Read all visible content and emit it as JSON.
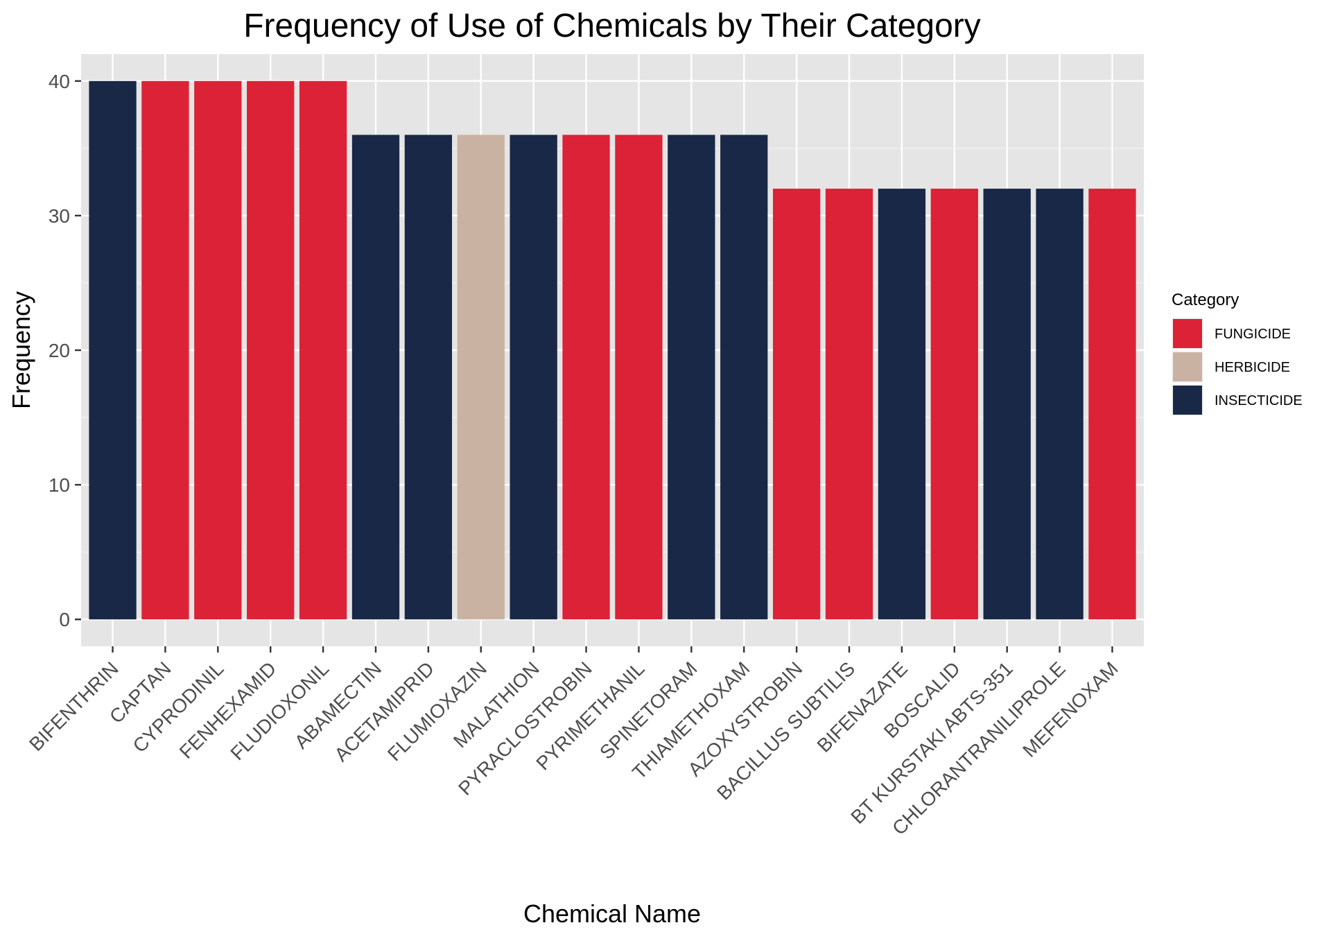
{
  "chart_data": {
    "type": "bar",
    "title": "Frequency of Use of Chemicals by Their Category",
    "xlabel": "Chemical Name",
    "ylabel": "Frequency",
    "ylim": [
      -2,
      42
    ],
    "yticks": [
      0,
      10,
      20,
      30,
      40
    ],
    "ytick_labels": [
      "0",
      "10",
      "20",
      "30",
      "40"
    ],
    "grid": true,
    "legend": {
      "title": "Category",
      "position": "right",
      "entries": [
        {
          "label": "FUNGICIDE",
          "color": "#DC2237"
        },
        {
          "label": "HERBICIDE",
          "color": "#CAB2A2"
        },
        {
          "label": "INSECTICIDE",
          "color": "#1A2847"
        }
      ]
    },
    "categories": [
      "BIFENTHRIN",
      "CAPTAN",
      "CYPRODINIL",
      "FENHEXAMID",
      "FLUDIOXONIL",
      "ABAMECTIN",
      "ACETAMIPRID",
      "FLUMIOXAZIN",
      "MALATHION",
      "PYRACLOSTROBIN",
      "PYRIMETHANIL",
      "SPINETORAM",
      "THIAMETHOXAM",
      "AZOXYSTROBIN",
      "BACILLUS SUBTILIS",
      "BIFENAZATE",
      "BOSCALID",
      "BT KURSTAKI ABTS-351",
      "CHLORANTRANILIPROLE",
      "MEFENOXAM"
    ],
    "values": [
      40,
      40,
      40,
      40,
      40,
      36,
      36,
      36,
      36,
      36,
      36,
      36,
      36,
      32,
      32,
      32,
      32,
      32,
      32,
      32
    ],
    "bar_categories": [
      "INSECTICIDE",
      "FUNGICIDE",
      "FUNGICIDE",
      "FUNGICIDE",
      "FUNGICIDE",
      "INSECTICIDE",
      "INSECTICIDE",
      "HERBICIDE",
      "INSECTICIDE",
      "FUNGICIDE",
      "FUNGICIDE",
      "INSECTICIDE",
      "INSECTICIDE",
      "FUNGICIDE",
      "FUNGICIDE",
      "INSECTICIDE",
      "FUNGICIDE",
      "INSECTICIDE",
      "INSECTICIDE",
      "FUNGICIDE"
    ],
    "panel_background": "#E5E5E5"
  }
}
